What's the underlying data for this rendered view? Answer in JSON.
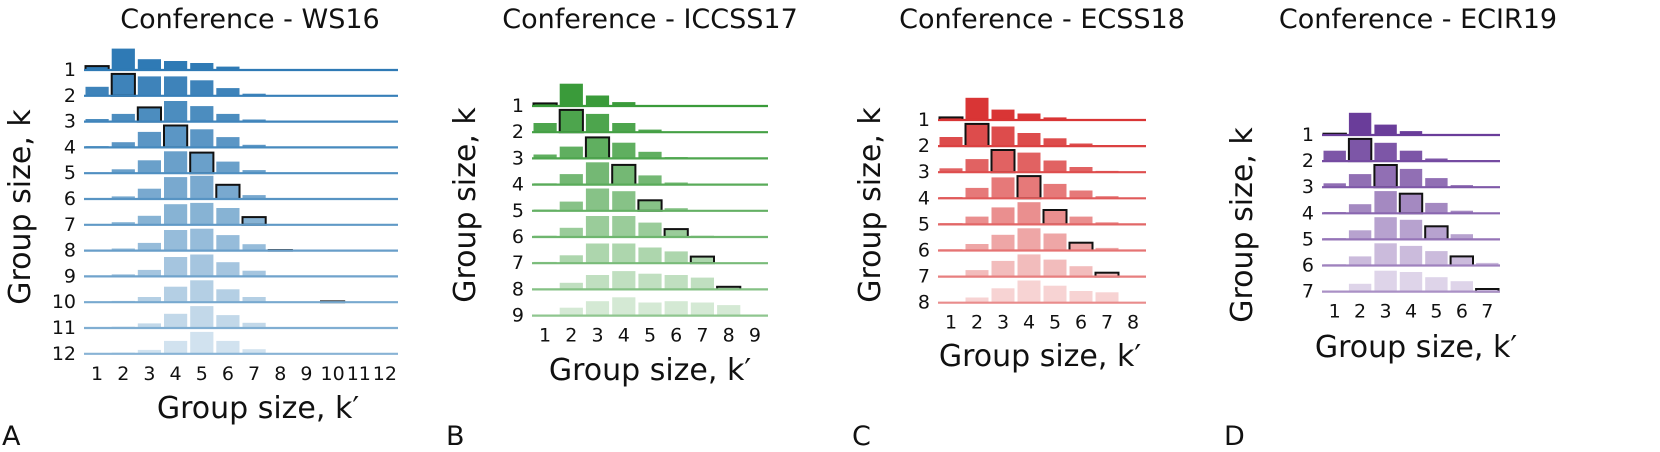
{
  "figure": {
    "panel_letters": [
      "A",
      "B",
      "C",
      "D"
    ],
    "xlabel": "Group size, k′",
    "ylabel": "Group size, k"
  },
  "chart_data": [
    {
      "type": "bar",
      "title": "Conference - WS16",
      "panel": "A",
      "color": "#2f7ab5",
      "xlabel": "Group size, k′",
      "ylabel": "Group size, k",
      "x_categories": [
        "1",
        "2",
        "3",
        "4",
        "5",
        "6",
        "7",
        "8",
        "9",
        "10",
        "11",
        "12"
      ],
      "y_categories": [
        "1",
        "2",
        "3",
        "4",
        "5",
        "6",
        "7",
        "8",
        "9",
        "10",
        "11",
        "12"
      ],
      "highlight": "diagonal k′ = k",
      "rows": [
        {
          "k": "1",
          "values": [
            0.15,
            0.83,
            0.42,
            0.35,
            0.27,
            0.13,
            0.02,
            0,
            0,
            0,
            0,
            0
          ]
        },
        {
          "k": "2",
          "values": [
            0.35,
            0.85,
            0.75,
            0.75,
            0.6,
            0.3,
            0.08,
            0,
            0,
            0,
            0,
            0
          ]
        },
        {
          "k": "3",
          "values": [
            0.1,
            0.3,
            0.55,
            0.8,
            0.6,
            0.3,
            0.08,
            0,
            0,
            0,
            0,
            0
          ]
        },
        {
          "k": "4",
          "values": [
            0.05,
            0.2,
            0.6,
            0.85,
            0.7,
            0.4,
            0.1,
            0,
            0,
            0,
            0,
            0
          ]
        },
        {
          "k": "5",
          "values": [
            0.03,
            0.15,
            0.5,
            0.85,
            0.8,
            0.45,
            0.12,
            0,
            0,
            0,
            0,
            0
          ]
        },
        {
          "k": "6",
          "values": [
            0.02,
            0.1,
            0.4,
            0.85,
            0.9,
            0.55,
            0.15,
            0,
            0,
            0,
            0,
            0
          ]
        },
        {
          "k": "7",
          "values": [
            0.02,
            0.1,
            0.35,
            0.8,
            0.85,
            0.65,
            0.3,
            0,
            0,
            0,
            0,
            0
          ]
        },
        {
          "k": "8",
          "values": [
            0.02,
            0.08,
            0.3,
            0.8,
            0.85,
            0.6,
            0.25,
            0.02,
            0,
            0,
            0,
            0
          ]
        },
        {
          "k": "9",
          "values": [
            0.02,
            0.08,
            0.25,
            0.75,
            0.85,
            0.55,
            0.22,
            0,
            0,
            0,
            0,
            0
          ]
        },
        {
          "k": "10",
          "values": [
            0.02,
            0.05,
            0.2,
            0.6,
            0.85,
            0.5,
            0.2,
            0,
            0,
            0.03,
            0,
            0
          ]
        },
        {
          "k": "11",
          "values": [
            0.02,
            0.05,
            0.18,
            0.55,
            0.85,
            0.5,
            0.2,
            0,
            0,
            0,
            0,
            0
          ]
        },
        {
          "k": "12",
          "values": [
            0.02,
            0.05,
            0.15,
            0.5,
            0.85,
            0.5,
            0.18,
            0,
            0,
            0,
            0,
            0
          ]
        }
      ]
    },
    {
      "type": "bar",
      "title": "Conference - ICCSS17",
      "panel": "B",
      "color": "#3a9b3a",
      "xlabel": "Group size, k′",
      "ylabel": "Group size, k",
      "x_categories": [
        "1",
        "2",
        "3",
        "4",
        "5",
        "6",
        "7",
        "8",
        "9"
      ],
      "y_categories": [
        "1",
        "2",
        "3",
        "4",
        "5",
        "6",
        "7",
        "8",
        "9"
      ],
      "highlight": "diagonal k′ = k",
      "rows": [
        {
          "k": "1",
          "values": [
            0.1,
            0.85,
            0.4,
            0.15,
            0.03,
            0,
            0,
            0,
            0
          ]
        },
        {
          "k": "2",
          "values": [
            0.35,
            0.85,
            0.7,
            0.35,
            0.1,
            0,
            0,
            0,
            0
          ]
        },
        {
          "k": "3",
          "values": [
            0.15,
            0.45,
            0.8,
            0.6,
            0.25,
            0.05,
            0,
            0,
            0
          ]
        },
        {
          "k": "4",
          "values": [
            0.05,
            0.4,
            0.85,
            0.75,
            0.35,
            0.08,
            0,
            0,
            0
          ]
        },
        {
          "k": "5",
          "values": [
            0.05,
            0.35,
            0.85,
            0.75,
            0.4,
            0.1,
            0,
            0,
            0
          ]
        },
        {
          "k": "6",
          "values": [
            0.05,
            0.35,
            0.8,
            0.8,
            0.55,
            0.3,
            0.05,
            0,
            0
          ]
        },
        {
          "k": "7",
          "values": [
            0.05,
            0.3,
            0.75,
            0.75,
            0.6,
            0.45,
            0.25,
            0,
            0
          ]
        },
        {
          "k": "8",
          "values": [
            0.03,
            0.25,
            0.55,
            0.7,
            0.6,
            0.55,
            0.45,
            0.1,
            0
          ]
        },
        {
          "k": "9",
          "values": [
            0.03,
            0.3,
            0.55,
            0.7,
            0.5,
            0.55,
            0.5,
            0.4,
            0
          ]
        }
      ]
    },
    {
      "type": "bar",
      "title": "Conference - ECSS18",
      "panel": "C",
      "color": "#d93535",
      "xlabel": "Group size, k′",
      "ylabel": "Group size, k",
      "x_categories": [
        "1",
        "2",
        "3",
        "4",
        "5",
        "6",
        "7",
        "8"
      ],
      "y_categories": [
        "1",
        "2",
        "3",
        "4",
        "5",
        "6",
        "7",
        "8"
      ],
      "highlight": "diagonal k′ = k",
      "rows": [
        {
          "k": "1",
          "values": [
            0.1,
            0.85,
            0.4,
            0.25,
            0.1,
            0.02,
            0,
            0
          ]
        },
        {
          "k": "2",
          "values": [
            0.35,
            0.85,
            0.75,
            0.5,
            0.3,
            0.1,
            0.02,
            0
          ]
        },
        {
          "k": "3",
          "values": [
            0.15,
            0.5,
            0.85,
            0.75,
            0.45,
            0.2,
            0.05,
            0
          ]
        },
        {
          "k": "4",
          "values": [
            0.05,
            0.4,
            0.8,
            0.85,
            0.55,
            0.3,
            0.08,
            0
          ]
        },
        {
          "k": "5",
          "values": [
            0.05,
            0.3,
            0.65,
            0.85,
            0.55,
            0.3,
            0.08,
            0
          ]
        },
        {
          "k": "6",
          "values": [
            0.05,
            0.25,
            0.6,
            0.85,
            0.65,
            0.3,
            0.1,
            0
          ]
        },
        {
          "k": "7",
          "values": [
            0.03,
            0.25,
            0.6,
            0.85,
            0.65,
            0.4,
            0.15,
            0
          ]
        },
        {
          "k": "8",
          "values": [
            0.03,
            0.2,
            0.55,
            0.85,
            0.65,
            0.45,
            0.4,
            0
          ]
        }
      ]
    },
    {
      "type": "bar",
      "title": "Conference - ECIR19",
      "panel": "D",
      "color": "#6a3d9a",
      "xlabel": "Group size, k′",
      "ylabel": "Group size, k",
      "x_categories": [
        "1",
        "2",
        "3",
        "4",
        "5",
        "6",
        "7"
      ],
      "y_categories": [
        "1",
        "2",
        "3",
        "4",
        "5",
        "6",
        "7"
      ],
      "highlight": "diagonal k′ = k",
      "rows": [
        {
          "k": "1",
          "values": [
            0.05,
            0.85,
            0.4,
            0.15,
            0.03,
            0,
            0
          ]
        },
        {
          "k": "2",
          "values": [
            0.4,
            0.85,
            0.7,
            0.4,
            0.1,
            0,
            0
          ]
        },
        {
          "k": "3",
          "values": [
            0.15,
            0.5,
            0.85,
            0.7,
            0.35,
            0.08,
            0
          ]
        },
        {
          "k": "4",
          "values": [
            0.05,
            0.35,
            0.85,
            0.75,
            0.4,
            0.1,
            0
          ]
        },
        {
          "k": "5",
          "values": [
            0.05,
            0.35,
            0.85,
            0.75,
            0.5,
            0.2,
            0.03
          ]
        },
        {
          "k": "6",
          "values": [
            0.05,
            0.35,
            0.85,
            0.75,
            0.55,
            0.35,
            0.1
          ]
        },
        {
          "k": "7",
          "values": [
            0.03,
            0.3,
            0.8,
            0.75,
            0.55,
            0.4,
            0.1
          ]
        }
      ]
    }
  ]
}
